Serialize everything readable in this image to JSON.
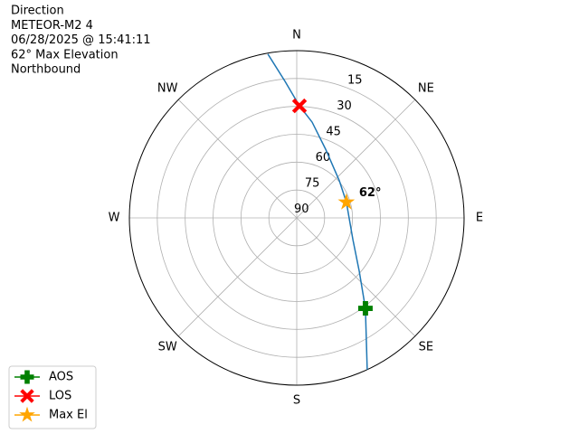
{
  "chart_data": {
    "type": "polar",
    "header_lines": [
      "Direction",
      "METEOR-M2 4",
      "06/28/2025 @ 15:41:11",
      "62° Max Elevation",
      "Northbound"
    ],
    "ylim": [
      90,
      0
    ],
    "yticks": [
      15,
      30,
      45,
      60,
      75,
      90
    ],
    "thetaticks": [
      {
        "value": 0,
        "label": "N"
      },
      {
        "value": 45,
        "label": "NE"
      },
      {
        "value": 90,
        "label": "E"
      },
      {
        "value": 135,
        "label": "SE"
      },
      {
        "value": 180,
        "label": "S"
      },
      {
        "value": 225,
        "label": "SW"
      },
      {
        "value": 270,
        "label": "W"
      },
      {
        "value": 315,
        "label": "NW"
      }
    ],
    "theta_direction": "clockwise",
    "theta_zero": "N",
    "grid": true,
    "track": {
      "color": "#1f77b4",
      "x": [
        155.1,
        142.8,
        130.5,
        111.2,
        72.5,
        48.9,
        22.8,
        9.1,
        1.4,
        355.1,
        350
      ],
      "y": [
        0,
        28.9,
        45.8,
        57.6,
        62,
        59.6,
        49.9,
        37.8,
        29.7,
        16.2,
        0.5
      ]
    },
    "series": [
      {
        "name": "AOS",
        "color": "#008000",
        "marker": "plus",
        "x": [
          142.8
        ],
        "y": [
          28.9
        ]
      },
      {
        "name": "LOS",
        "color": "#ff0000",
        "marker": "x",
        "x": [
          1.4
        ],
        "y": [
          29.7
        ]
      },
      {
        "name": "Max El",
        "color": "#ffa500",
        "marker": "star",
        "x": [
          72.5
        ],
        "y": [
          62
        ],
        "value_labels": [
          "62°"
        ]
      }
    ],
    "legend": "lower left"
  }
}
